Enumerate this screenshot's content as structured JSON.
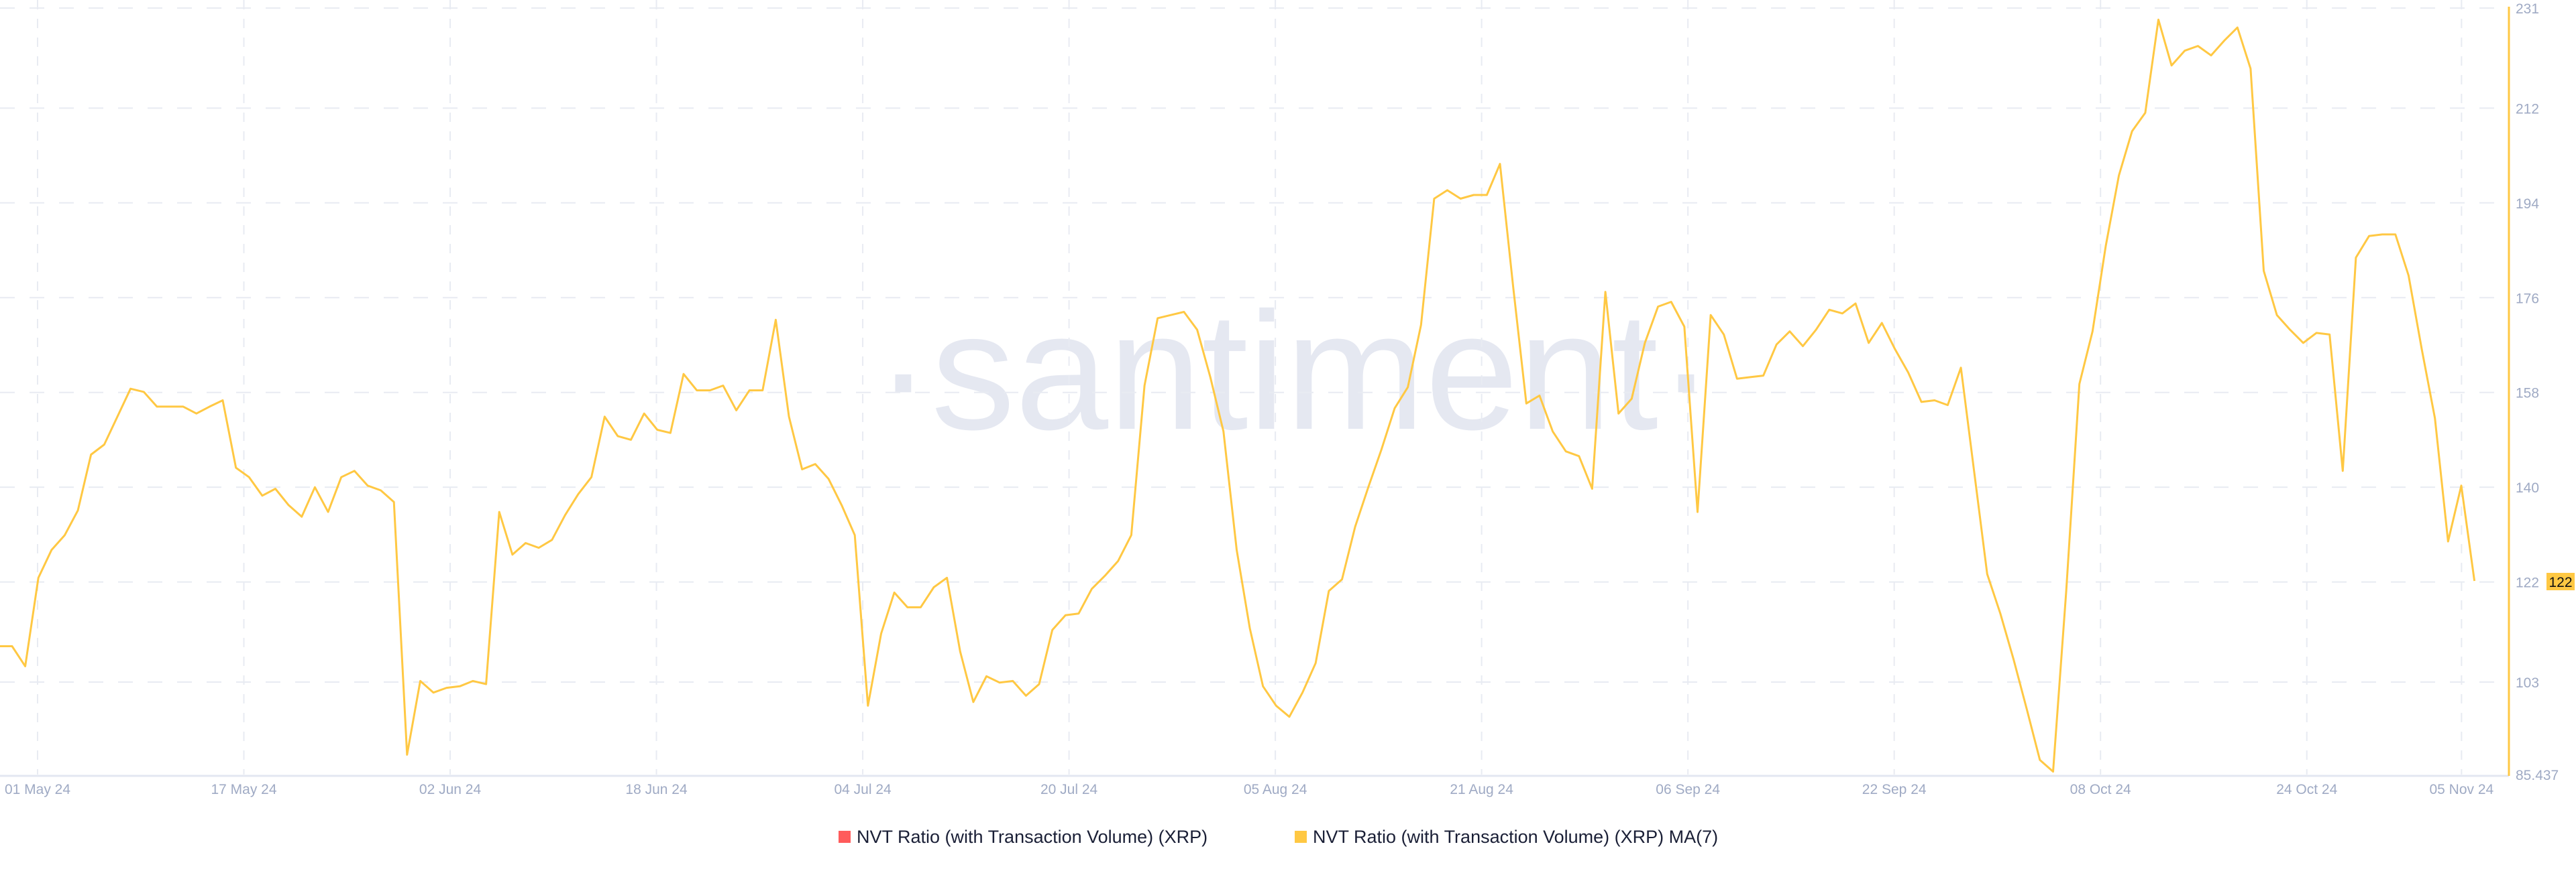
{
  "chart_data": {
    "type": "line",
    "title": "",
    "xlabel": "",
    "ylabel": "",
    "watermark": "·santiment·",
    "x_start": "2024-04-28",
    "x_end": "2024-11-06",
    "x_ticks": [
      "01 May 24",
      "17 May 24",
      "02 Jun 24",
      "18 Jun 24",
      "04 Jul 24",
      "20 Jul 24",
      "05 Aug 24",
      "21 Aug 24",
      "06 Sep 24",
      "22 Sep 24",
      "08 Oct 24",
      "24 Oct 24",
      "05 Nov 24"
    ],
    "x_tick_dates": [
      "2024-05-01",
      "2024-05-17",
      "2024-06-02",
      "2024-06-18",
      "2024-07-04",
      "2024-07-20",
      "2024-08-05",
      "2024-08-21",
      "2024-09-06",
      "2024-09-22",
      "2024-10-08",
      "2024-10-24",
      "2024-11-05"
    ],
    "y_ticks": [
      "231",
      "212",
      "194",
      "176",
      "158",
      "140",
      "122",
      "103",
      "85.437"
    ],
    "ylim": [
      85.437,
      231
    ],
    "y_axis_side": "right",
    "grid": true,
    "legend_placement": "bottom-center",
    "last_value_label": "122",
    "series": [
      {
        "name": "NVT Ratio (with Transaction Volume) (XRP)",
        "color": "#ff5b5b",
        "values": []
      },
      {
        "name": "NVT Ratio (with Transaction Volume) (XRP) MA(7)",
        "color": "#ffc843",
        "values": [
          109.8,
          109.8,
          106.0,
          122.8,
          128.1,
          130.9,
          135.6,
          146.2,
          148.1,
          153.4,
          158.7,
          158.1,
          155.3,
          155.3,
          155.3,
          154.0,
          155.3,
          156.5,
          143.7,
          141.9,
          138.4,
          139.7,
          136.6,
          134.4,
          140.0,
          135.3,
          141.9,
          143.1,
          140.3,
          139.4,
          137.2,
          89.2,
          103.2,
          101.0,
          101.9,
          102.2,
          103.2,
          102.6,
          135.3,
          127.2,
          129.4,
          128.5,
          130.0,
          134.7,
          138.7,
          141.9,
          153.4,
          149.7,
          149.0,
          154.0,
          150.9,
          150.3,
          161.5,
          158.4,
          158.4,
          159.3,
          154.6,
          158.4,
          158.4,
          171.8,
          153.4,
          143.4,
          144.4,
          141.6,
          136.6,
          130.9,
          98.5,
          112.2,
          120.0,
          117.2,
          117.2,
          121.0,
          122.8,
          108.8,
          99.2,
          104.1,
          102.9,
          103.2,
          100.4,
          102.6,
          112.9,
          115.7,
          116.0,
          120.7,
          123.2,
          126.0,
          130.9,
          159.3,
          172.1,
          172.7,
          173.3,
          169.9,
          160.9,
          150.6,
          128.1,
          113.2,
          102.2,
          98.5,
          96.4,
          101.0,
          106.6,
          120.3,
          122.5,
          132.5,
          140.0,
          147.2,
          155.0,
          159.0,
          170.8,
          194.8,
          196.4,
          194.8,
          195.5,
          195.5,
          201.4,
          178.0,
          155.9,
          157.4,
          150.6,
          146.8,
          145.9,
          139.7,
          177.1,
          154.0,
          156.8,
          167.4,
          174.3,
          175.2,
          170.5,
          135.3,
          172.7,
          169.0,
          160.6,
          160.9,
          161.2,
          167.1,
          169.6,
          166.8,
          169.9,
          173.7,
          173.0,
          174.9,
          167.4,
          171.2,
          166.2,
          161.8,
          156.2,
          156.5,
          155.6,
          162.7,
          143.1,
          123.5,
          116.0,
          107.3,
          97.9,
          88.2,
          86.0,
          120.3,
          159.6,
          169.6,
          185.8,
          199.2,
          207.6,
          211.1,
          228.8,
          220.1,
          222.9,
          223.8,
          222.0,
          224.8,
          227.3,
          219.5,
          181.1,
          172.7,
          169.9,
          167.4,
          169.3,
          169.0,
          143.1,
          183.6,
          187.7,
          188.0,
          188.0,
          180.2,
          166.2,
          153.1,
          129.7,
          140.3,
          122.2
        ]
      }
    ]
  }
}
